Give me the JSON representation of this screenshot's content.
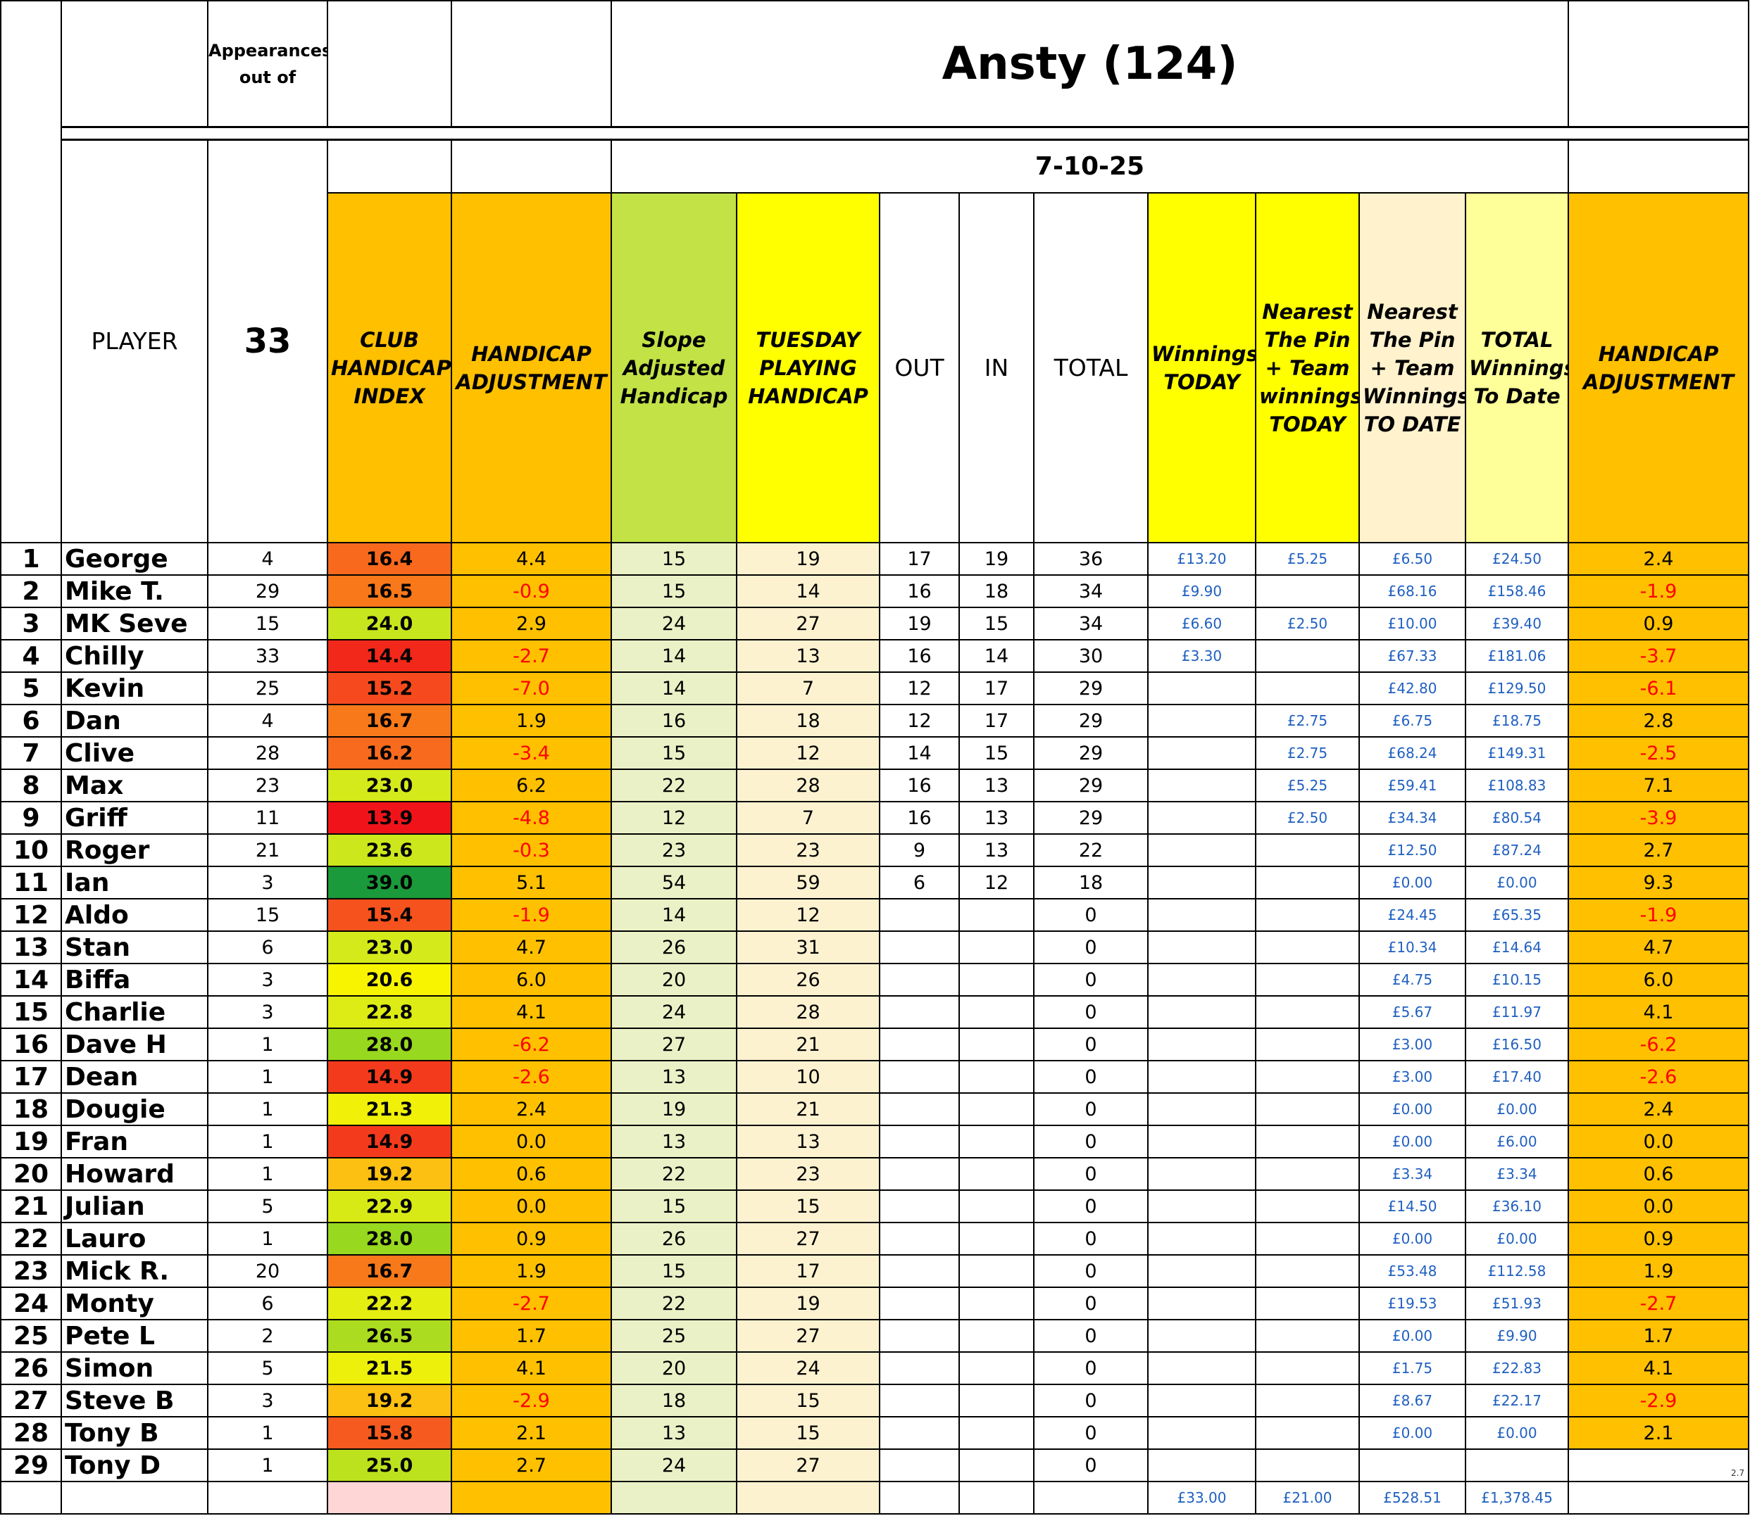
{
  "header": {
    "title": "Ansty (124)",
    "date": "7-10-25",
    "appearances_label": "Appearances out of",
    "appearances_total": "33",
    "columns": [
      "PLAYER",
      "CLUB HANDICAP INDEX",
      "HANDICAP ADJUSTMENT",
      "Slope Adjusted Handicap",
      "TUESDAY PLAYING HANDICAP",
      "OUT",
      "IN",
      "TOTAL",
      "Winnings TODAY",
      "Nearest The Pin + Team winnings TODAY",
      "Nearest The Pin + Team Winnings TO DATE",
      "TOTAL Winnings To Date",
      "HANDICAP ADJUSTMENT"
    ]
  },
  "table": {
    "rows": [
      [
        "1",
        "George",
        "4",
        "16.4",
        "4.4",
        "15",
        "19",
        "17",
        "19",
        "36",
        "£13.20",
        "£5.25",
        "£6.50",
        "£24.50",
        "2.4"
      ],
      [
        "2",
        "Mike T.",
        "29",
        "16.5",
        "-0.9",
        "15",
        "14",
        "16",
        "18",
        "34",
        "£9.90",
        null,
        "£68.16",
        "£158.46",
        "-1.9"
      ],
      [
        "3",
        "MK Seve",
        "15",
        "24.0",
        "2.9",
        "24",
        "27",
        "19",
        "15",
        "34",
        "£6.60",
        "£2.50",
        "£10.00",
        "£39.40",
        "0.9"
      ],
      [
        "4",
        "Chilly",
        "33",
        "14.4",
        "-2.7",
        "14",
        "13",
        "16",
        "14",
        "30",
        "£3.30",
        null,
        "£67.33",
        "£181.06",
        "-3.7"
      ],
      [
        "5",
        "Kevin",
        "25",
        "15.2",
        "-7.0",
        "14",
        "7",
        "12",
        "17",
        "29",
        null,
        null,
        "£42.80",
        "£129.50",
        "-6.1"
      ],
      [
        "6",
        "Dan",
        "4",
        "16.7",
        "1.9",
        "16",
        "18",
        "12",
        "17",
        "29",
        null,
        "£2.75",
        "£6.75",
        "£18.75",
        "2.8"
      ],
      [
        "7",
        "Clive",
        "28",
        "16.2",
        "-3.4",
        "15",
        "12",
        "14",
        "15",
        "29",
        null,
        "£2.75",
        "£68.24",
        "£149.31",
        "-2.5"
      ],
      [
        "8",
        "Max",
        "23",
        "23.0",
        "6.2",
        "22",
        "28",
        "16",
        "13",
        "29",
        null,
        "£5.25",
        "£59.41",
        "£108.83",
        "7.1"
      ],
      [
        "9",
        "Griff",
        "11",
        "13.9",
        "-4.8",
        "12",
        "7",
        "16",
        "13",
        "29",
        null,
        "£2.50",
        "£34.34",
        "£80.54",
        "-3.9"
      ],
      [
        "10",
        "Roger",
        "21",
        "23.6",
        "-0.3",
        "23",
        "23",
        "9",
        "13",
        "22",
        null,
        null,
        "£12.50",
        "£87.24",
        "2.7"
      ],
      [
        "11",
        "Ian",
        "3",
        "39.0",
        "5.1",
        "54",
        "59",
        "6",
        "12",
        "18",
        null,
        null,
        "£0.00",
        "£0.00",
        "9.3"
      ],
      [
        "12",
        "Aldo",
        "15",
        "15.4",
        "-1.9",
        "14",
        "12",
        null,
        null,
        "0",
        null,
        null,
        "£24.45",
        "£65.35",
        "-1.9"
      ],
      [
        "13",
        "Stan",
        "6",
        "23.0",
        "4.7",
        "26",
        "31",
        null,
        null,
        "0",
        null,
        null,
        "£10.34",
        "£14.64",
        "4.7"
      ],
      [
        "14",
        "Biffa",
        "3",
        "20.6",
        "6.0",
        "20",
        "26",
        null,
        null,
        "0",
        null,
        null,
        "£4.75",
        "£10.15",
        "6.0"
      ],
      [
        "15",
        "Charlie",
        "3",
        "22.8",
        "4.1",
        "24",
        "28",
        null,
        null,
        "0",
        null,
        null,
        "£5.67",
        "£11.97",
        "4.1"
      ],
      [
        "16",
        "Dave H",
        "1",
        "28.0",
        "-6.2",
        "27",
        "21",
        null,
        null,
        "0",
        null,
        null,
        "£3.00",
        "£16.50",
        "-6.2"
      ],
      [
        "17",
        "Dean",
        "1",
        "14.9",
        "-2.6",
        "13",
        "10",
        null,
        null,
        "0",
        null,
        null,
        "£3.00",
        "£17.40",
        "-2.6"
      ],
      [
        "18",
        "Dougie",
        "1",
        "21.3",
        "2.4",
        "19",
        "21",
        null,
        null,
        "0",
        null,
        null,
        "£0.00",
        "£0.00",
        "2.4"
      ],
      [
        "19",
        "Fran",
        "1",
        "14.9",
        "0.0",
        "13",
        "13",
        null,
        null,
        "0",
        null,
        null,
        "£0.00",
        "£6.00",
        "0.0"
      ],
      [
        "20",
        "Howard",
        "1",
        "19.2",
        "0.6",
        "22",
        "23",
        null,
        null,
        "0",
        null,
        null,
        "£3.34",
        "£3.34",
        "0.6"
      ],
      [
        "21",
        "Julian",
        "5",
        "22.9",
        "0.0",
        "15",
        "15",
        null,
        null,
        "0",
        null,
        null,
        "£14.50",
        "£36.10",
        "0.0"
      ],
      [
        "22",
        "Lauro",
        "1",
        "28.0",
        "0.9",
        "26",
        "27",
        null,
        null,
        "0",
        null,
        null,
        "£0.00",
        "£0.00",
        "0.9"
      ],
      [
        "23",
        "Mick R.",
        "20",
        "16.7",
        "1.9",
        "15",
        "17",
        null,
        null,
        "0",
        null,
        null,
        "£53.48",
        "£112.58",
        "1.9"
      ],
      [
        "24",
        "Monty",
        "6",
        "22.2",
        "-2.7",
        "22",
        "19",
        null,
        null,
        "0",
        null,
        null,
        "£19.53",
        "£51.93",
        "-2.7"
      ],
      [
        "25",
        "Pete L",
        "2",
        "26.5",
        "1.7",
        "25",
        "27",
        null,
        null,
        "0",
        null,
        null,
        "£0.00",
        "£9.90",
        "1.7"
      ],
      [
        "26",
        "Simon",
        "5",
        "21.5",
        "4.1",
        "20",
        "24",
        null,
        null,
        "0",
        null,
        null,
        "£1.75",
        "£22.83",
        "4.1"
      ],
      [
        "27",
        "Steve B",
        "3",
        "19.2",
        "-2.9",
        "18",
        "15",
        null,
        null,
        "0",
        null,
        null,
        "£8.67",
        "£22.17",
        "-2.9"
      ],
      [
        "28",
        "Tony B",
        "1",
        "15.8",
        "2.1",
        "13",
        "15",
        null,
        null,
        "0",
        null,
        null,
        "£0.00",
        "£0.00",
        "2.1"
      ],
      [
        "29",
        "Tony D",
        "1",
        "25.0",
        "2.7",
        "24",
        "27",
        null,
        null,
        "0",
        null,
        null,
        null,
        null,
        null
      ]
    ],
    "index_colors": [
      "#f8691e",
      "#f8781a",
      "#c8e61e",
      "#f2281a",
      "#f64a1e",
      "#f8791a",
      "#f86a1e",
      "#d4ea1a",
      "#f0141a",
      "#cce81c",
      "#1a9a3a",
      "#f6521e",
      "#d4ea1a",
      "#f8f400",
      "#dcec14",
      "#98d81e",
      "#f43a1c",
      "#f0f008",
      "#f43a1c",
      "#fcc012",
      "#d8ea16",
      "#98d81e",
      "#f8791a",
      "#e4ee10",
      "#acdc20",
      "#ecf00a",
      "#fcc012",
      "#f65a1e",
      "#bce21e"
    ]
  },
  "totals": [
    null,
    null,
    null,
    null,
    null,
    null,
    null,
    null,
    null,
    null,
    "£33.00",
    "£21.00",
    "£528.51",
    "£1,378.45",
    null
  ],
  "note": "2.7"
}
